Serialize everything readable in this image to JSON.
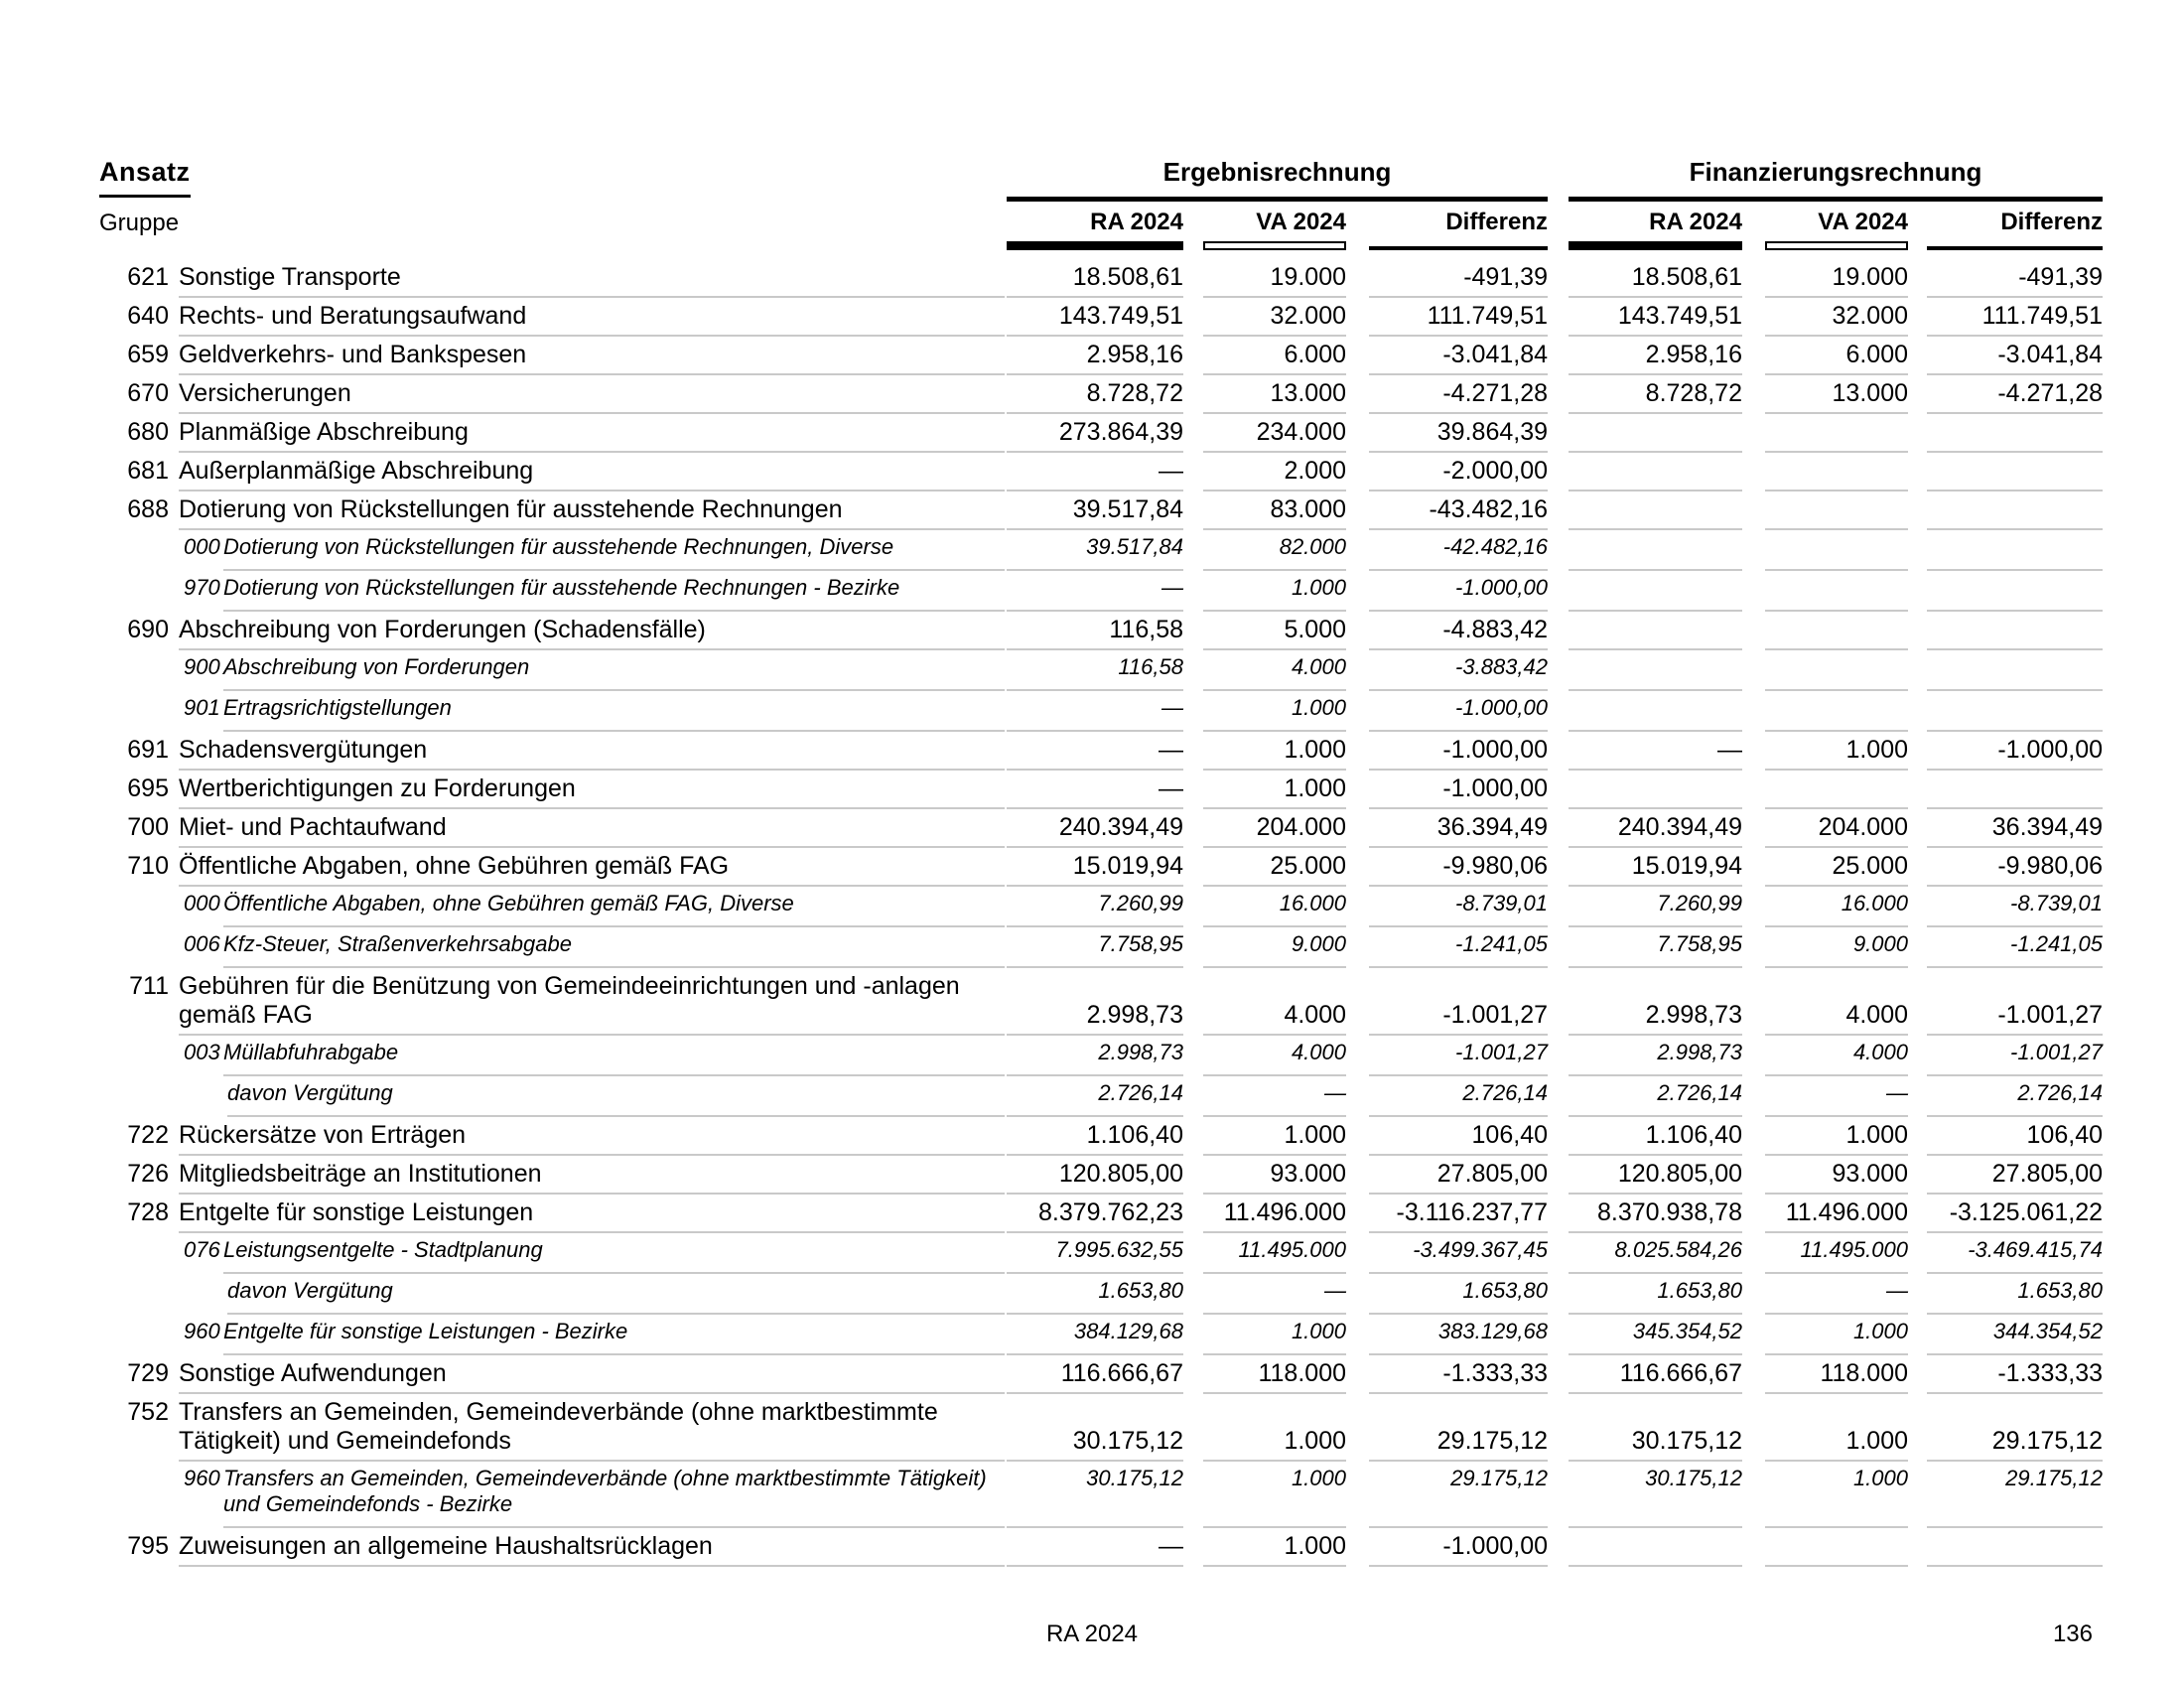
{
  "header": {
    "ansatz_label": "Ansatz",
    "gruppe_label": "Gruppe",
    "groups": [
      {
        "title": "Ergebnisrechnung",
        "columns": [
          "RA 2024",
          "VA 2024",
          "Differenz"
        ]
      },
      {
        "title": "Finanzierungsrechnung",
        "columns": [
          "RA 2024",
          "VA 2024",
          "Differenz"
        ]
      }
    ],
    "legend": {
      "ra_marker": "solid-black-bar",
      "va_marker": "outlined-white-bar",
      "differenz_marker": "thick-black-line"
    }
  },
  "colors": {
    "text": "#000000",
    "rule_heavy": "#000000",
    "rule_light": "#c9c9c9"
  },
  "rows": [
    {
      "level": "main",
      "num": "621",
      "label": "Sonstige Transporte",
      "values": [
        "18.508,61",
        "19.000",
        "-491,39",
        "18.508,61",
        "19.000",
        "-491,39"
      ]
    },
    {
      "level": "main",
      "num": "640",
      "label": "Rechts- und Beratungsaufwand",
      "values": [
        "143.749,51",
        "32.000",
        "111.749,51",
        "143.749,51",
        "32.000",
        "111.749,51"
      ]
    },
    {
      "level": "main",
      "num": "659",
      "label": "Geldverkehrs- und Bankspesen",
      "values": [
        "2.958,16",
        "6.000",
        "-3.041,84",
        "2.958,16",
        "6.000",
        "-3.041,84"
      ]
    },
    {
      "level": "main",
      "num": "670",
      "label": "Versicherungen",
      "values": [
        "8.728,72",
        "13.000",
        "-4.271,28",
        "8.728,72",
        "13.000",
        "-4.271,28"
      ]
    },
    {
      "level": "main",
      "num": "680",
      "label": "Planmäßige Abschreibung",
      "values": [
        "273.864,39",
        "234.000",
        "39.864,39",
        "",
        "",
        ""
      ]
    },
    {
      "level": "main",
      "num": "681",
      "label": "Außerplanmäßige Abschreibung",
      "values": [
        "—",
        "2.000",
        "-2.000,00",
        "",
        "",
        ""
      ]
    },
    {
      "level": "main",
      "num": "688",
      "label": "Dotierung von Rückstellungen für ausstehende Rechnungen",
      "values": [
        "39.517,84",
        "83.000",
        "-43.482,16",
        "",
        "",
        ""
      ]
    },
    {
      "level": "sub",
      "num": "000",
      "label": "Dotierung von Rückstellungen für ausstehende Rechnungen, Diverse",
      "values": [
        "39.517,84",
        "82.000",
        "-42.482,16",
        "",
        "",
        ""
      ]
    },
    {
      "level": "sub",
      "num": "970",
      "label": "Dotierung von Rückstellungen für ausstehende Rechnungen - Bezirke",
      "values": [
        "—",
        "1.000",
        "-1.000,00",
        "",
        "",
        ""
      ]
    },
    {
      "level": "main",
      "num": "690",
      "label": "Abschreibung von Forderungen (Schadensfälle)",
      "values": [
        "116,58",
        "5.000",
        "-4.883,42",
        "",
        "",
        ""
      ]
    },
    {
      "level": "sub",
      "num": "900",
      "label": "Abschreibung von Forderungen",
      "values": [
        "116,58",
        "4.000",
        "-3.883,42",
        "",
        "",
        ""
      ]
    },
    {
      "level": "sub",
      "num": "901",
      "label": "Ertragsrichtigstellungen",
      "values": [
        "—",
        "1.000",
        "-1.000,00",
        "",
        "",
        ""
      ]
    },
    {
      "level": "main",
      "num": "691",
      "label": "Schadensvergütungen",
      "values": [
        "—",
        "1.000",
        "-1.000,00",
        "—",
        "1.000",
        "-1.000,00"
      ]
    },
    {
      "level": "main",
      "num": "695",
      "label": "Wertberichtigungen zu Forderungen",
      "values": [
        "—",
        "1.000",
        "-1.000,00",
        "",
        "",
        ""
      ]
    },
    {
      "level": "main",
      "num": "700",
      "label": "Miet- und Pachtaufwand",
      "values": [
        "240.394,49",
        "204.000",
        "36.394,49",
        "240.394,49",
        "204.000",
        "36.394,49"
      ]
    },
    {
      "level": "main",
      "num": "710",
      "label": "Öffentliche Abgaben, ohne Gebühren gemäß FAG",
      "values": [
        "15.019,94",
        "25.000",
        "-9.980,06",
        "15.019,94",
        "25.000",
        "-9.980,06"
      ]
    },
    {
      "level": "sub",
      "num": "000",
      "label": "Öffentliche Abgaben, ohne Gebühren gemäß FAG, Diverse",
      "values": [
        "7.260,99",
        "16.000",
        "-8.739,01",
        "7.260,99",
        "16.000",
        "-8.739,01"
      ]
    },
    {
      "level": "sub",
      "num": "006",
      "label": "Kfz-Steuer, Straßenverkehrsabgabe",
      "values": [
        "7.758,95",
        "9.000",
        "-1.241,05",
        "7.758,95",
        "9.000",
        "-1.241,05"
      ]
    },
    {
      "level": "main",
      "num": "711",
      "label": "Gebühren für die Benützung von Gemeindeeinrichtungen und -anlagen gemäß FAG",
      "values": [
        "2.998,73",
        "4.000",
        "-1.001,27",
        "2.998,73",
        "4.000",
        "-1.001,27"
      ]
    },
    {
      "level": "sub",
      "num": "003",
      "label": "Müllabfuhrabgabe",
      "values": [
        "2.998,73",
        "4.000",
        "-1.001,27",
        "2.998,73",
        "4.000",
        "-1.001,27"
      ]
    },
    {
      "level": "davon",
      "num": "",
      "label": "davon Vergütung",
      "values": [
        "2.726,14",
        "—",
        "2.726,14",
        "2.726,14",
        "—",
        "2.726,14"
      ]
    },
    {
      "level": "main",
      "num": "722",
      "label": "Rückersätze von Erträgen",
      "values": [
        "1.106,40",
        "1.000",
        "106,40",
        "1.106,40",
        "1.000",
        "106,40"
      ]
    },
    {
      "level": "main",
      "num": "726",
      "label": "Mitgliedsbeiträge an Institutionen",
      "values": [
        "120.805,00",
        "93.000",
        "27.805,00",
        "120.805,00",
        "93.000",
        "27.805,00"
      ]
    },
    {
      "level": "main",
      "num": "728",
      "label": "Entgelte für sonstige Leistungen",
      "values": [
        "8.379.762,23",
        "11.496.000",
        "-3.116.237,77",
        "8.370.938,78",
        "11.496.000",
        "-3.125.061,22"
      ]
    },
    {
      "level": "sub",
      "num": "076",
      "label": "Leistungsentgelte - Stadtplanung",
      "values": [
        "7.995.632,55",
        "11.495.000",
        "-3.499.367,45",
        "8.025.584,26",
        "11.495.000",
        "-3.469.415,74"
      ]
    },
    {
      "level": "davon",
      "num": "",
      "label": "davon Vergütung",
      "values": [
        "1.653,80",
        "—",
        "1.653,80",
        "1.653,80",
        "—",
        "1.653,80"
      ]
    },
    {
      "level": "sub",
      "num": "960",
      "label": "Entgelte für sonstige Leistungen - Bezirke",
      "values": [
        "384.129,68",
        "1.000",
        "383.129,68",
        "345.354,52",
        "1.000",
        "344.354,52"
      ]
    },
    {
      "level": "main",
      "num": "729",
      "label": "Sonstige Aufwendungen",
      "values": [
        "116.666,67",
        "118.000",
        "-1.333,33",
        "116.666,67",
        "118.000",
        "-1.333,33"
      ]
    },
    {
      "level": "main",
      "num": "752",
      "label": "Transfers an Gemeinden, Gemeindeverbände (ohne marktbestimmte Tätigkeit) und Gemeindefonds",
      "values": [
        "30.175,12",
        "1.000",
        "29.175,12",
        "30.175,12",
        "1.000",
        "29.175,12"
      ]
    },
    {
      "level": "sub",
      "num": "960",
      "valign": "top",
      "label": "Transfers an Gemeinden, Gemeindeverbände (ohne marktbestimmte Tätigkeit) und Gemeindefonds - Bezirke",
      "values": [
        "30.175,12",
        "1.000",
        "29.175,12",
        "30.175,12",
        "1.000",
        "29.175,12"
      ]
    },
    {
      "level": "main",
      "num": "795",
      "label": "Zuweisungen an allgemeine Haushaltsrücklagen",
      "values": [
        "—",
        "1.000",
        "-1.000,00",
        "",
        "",
        ""
      ]
    }
  ],
  "footer": {
    "center_label": "RA 2024",
    "page_number": "136"
  }
}
